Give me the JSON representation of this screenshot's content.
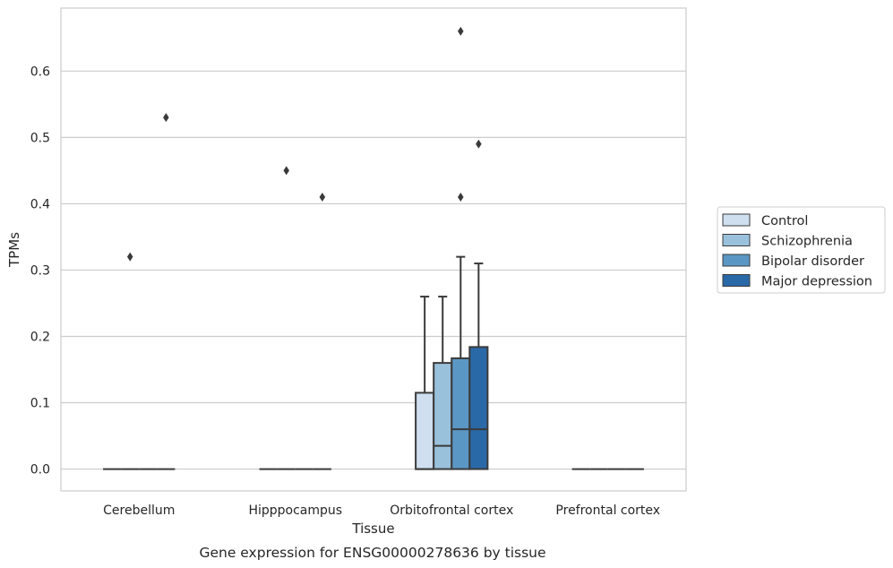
{
  "chart_data": {
    "type": "box",
    "title": "",
    "caption": "Gene expression for ENSG00000278636 by tissue",
    "xlabel": "Tissue",
    "ylabel": "TPMs",
    "ylim": [
      -0.033,
      0.695
    ],
    "yticks": [
      "0.0",
      "0.1",
      "0.2",
      "0.3",
      "0.4",
      "0.5",
      "0.6"
    ],
    "grid": true,
    "legend_position": "right",
    "categories": [
      "Cerebellum",
      "Hipppocampus",
      "Orbitofrontal cortex",
      "Prefrontal cortex"
    ],
    "series": [
      {
        "name": "Control",
        "color": "#cfdff0",
        "boxes": [
          {
            "category": "Cerebellum",
            "q1": 0,
            "median": 0,
            "q3": 0,
            "whisker_low": 0,
            "whisker_high": 0,
            "outliers": []
          },
          {
            "category": "Hipppocampus",
            "q1": 0,
            "median": 0,
            "q3": 0,
            "whisker_low": 0,
            "whisker_high": 0,
            "outliers": []
          },
          {
            "category": "Orbitofrontal cortex",
            "q1": 0,
            "median": 0,
            "q3": 0.115,
            "whisker_low": 0,
            "whisker_high": 0.26,
            "outliers": []
          },
          {
            "category": "Prefrontal cortex",
            "q1": 0,
            "median": 0,
            "q3": 0,
            "whisker_low": 0,
            "whisker_high": 0,
            "outliers": []
          }
        ]
      },
      {
        "name": "Schizophrenia",
        "color": "#9ac1dc",
        "boxes": [
          {
            "category": "Cerebellum",
            "q1": 0,
            "median": 0,
            "q3": 0,
            "whisker_low": 0,
            "whisker_high": 0,
            "outliers": [
              0.32
            ]
          },
          {
            "category": "Hipppocampus",
            "q1": 0,
            "median": 0,
            "q3": 0,
            "whisker_low": 0,
            "whisker_high": 0,
            "outliers": [
              0.45
            ]
          },
          {
            "category": "Orbitofrontal cortex",
            "q1": 0,
            "median": 0.035,
            "q3": 0.16,
            "whisker_low": 0,
            "whisker_high": 0.26,
            "outliers": []
          },
          {
            "category": "Prefrontal cortex",
            "q1": 0,
            "median": 0,
            "q3": 0,
            "whisker_low": 0,
            "whisker_high": 0,
            "outliers": []
          }
        ]
      },
      {
        "name": "Bipolar disorder",
        "color": "#5b97c4",
        "boxes": [
          {
            "category": "Cerebellum",
            "q1": 0,
            "median": 0,
            "q3": 0,
            "whisker_low": 0,
            "whisker_high": 0,
            "outliers": []
          },
          {
            "category": "Hipppocampus",
            "q1": 0,
            "median": 0,
            "q3": 0,
            "whisker_low": 0,
            "whisker_high": 0,
            "outliers": []
          },
          {
            "category": "Orbitofrontal cortex",
            "q1": 0,
            "median": 0.06,
            "q3": 0.167,
            "whisker_low": 0,
            "whisker_high": 0.32,
            "outliers": [
              0.66,
              0.41
            ]
          },
          {
            "category": "Prefrontal cortex",
            "q1": 0,
            "median": 0,
            "q3": 0,
            "whisker_low": 0,
            "whisker_high": 0,
            "outliers": []
          }
        ]
      },
      {
        "name": "Major depression",
        "color": "#2a69a8",
        "boxes": [
          {
            "category": "Cerebellum",
            "q1": 0,
            "median": 0,
            "q3": 0,
            "whisker_low": 0,
            "whisker_high": 0,
            "outliers": [
              0.53
            ]
          },
          {
            "category": "Hipppocampus",
            "q1": 0,
            "median": 0,
            "q3": 0,
            "whisker_low": 0,
            "whisker_high": 0,
            "outliers": [
              0.41
            ]
          },
          {
            "category": "Orbitofrontal cortex",
            "q1": 0,
            "median": 0.06,
            "q3": 0.184,
            "whisker_low": 0,
            "whisker_high": 0.31,
            "outliers": [
              0.49
            ]
          },
          {
            "category": "Prefrontal cortex",
            "q1": 0,
            "median": 0,
            "q3": 0,
            "whisker_low": 0,
            "whisker_high": 0,
            "outliers": []
          }
        ]
      }
    ]
  }
}
